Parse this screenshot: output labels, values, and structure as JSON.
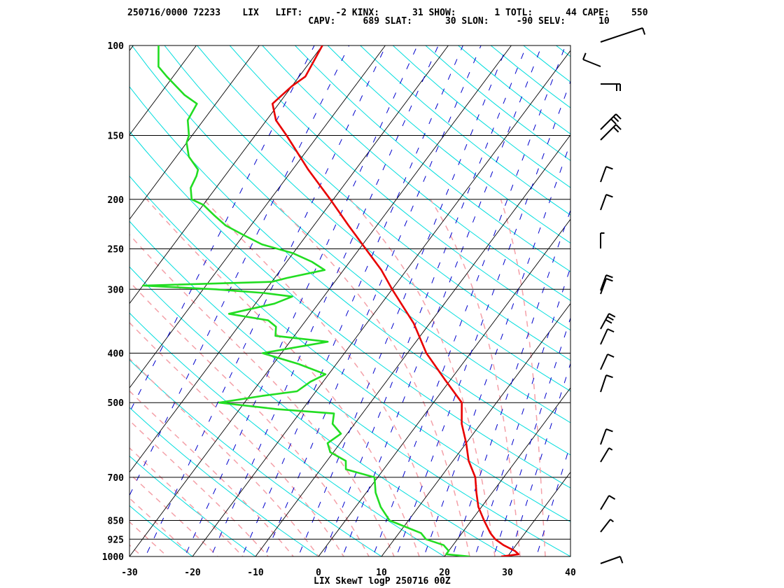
{
  "header": {
    "line1": "250716/0000 72233    LIX   LIFT:      -2 KINX:      31 SHOW:       1 TOTL:      44 CAPE:    550",
    "line2": "                                 CAPV:     689 SLAT:      30 SLON:     -90 SELV:      10"
  },
  "chart_data": {
    "type": "line",
    "title": "LIX SkewT logP 250716 00Z",
    "station": "LIX",
    "station_id": "72233",
    "xlabel": "",
    "ylabel": "",
    "x_ticks": [
      -30,
      -20,
      -10,
      0,
      10,
      20,
      30,
      40
    ],
    "p_ticks": [
      100,
      150,
      200,
      250,
      300,
      400,
      500,
      700,
      850,
      925,
      1000
    ],
    "xlim": [
      -30,
      40
    ],
    "plim": [
      1000,
      100
    ],
    "log_p_axis": true,
    "indices": {
      "LIFT": -2,
      "KINX": 31,
      "SHOW": 1,
      "TOTL": 44,
      "CAPE": 550,
      "CAPV": 689,
      "SLAT": 30,
      "SLON": -90,
      "SELV": 10
    },
    "colors": {
      "temperature": "#e80000",
      "dewpoint": "#22dd22",
      "isotherm": "#000000",
      "dry_adiabat": "#00dddd",
      "moist_adiabat": "#f4a0a8",
      "mixing_ratio": "#0000cc",
      "isobar": "#000000"
    },
    "series": [
      {
        "key": "temperature",
        "points": [
          [
            1000,
            29.0
          ],
          [
            990,
            31.5
          ],
          [
            975,
            30.5
          ],
          [
            950,
            28.0
          ],
          [
            925,
            26.0
          ],
          [
            900,
            24.5
          ],
          [
            850,
            22.0
          ],
          [
            800,
            19.5
          ],
          [
            750,
            17.5
          ],
          [
            700,
            15.5
          ],
          [
            650,
            12.5
          ],
          [
            600,
            10.0
          ],
          [
            550,
            7.0
          ],
          [
            500,
            4.5
          ],
          [
            450,
            -1.0
          ],
          [
            400,
            -7.0
          ],
          [
            350,
            -12.5
          ],
          [
            300,
            -20.0
          ],
          [
            275,
            -24.0
          ],
          [
            250,
            -29.0
          ],
          [
            225,
            -34.5
          ],
          [
            200,
            -40.5
          ],
          [
            175,
            -47.5
          ],
          [
            150,
            -55.0
          ],
          [
            140,
            -58.5
          ],
          [
            130,
            -61.0
          ],
          [
            120,
            -60.0
          ],
          [
            115,
            -59.0
          ],
          [
            100,
            -60.0
          ]
        ]
      },
      {
        "key": "dewpoint",
        "points": [
          [
            1000,
            24.0
          ],
          [
            990,
            20.0
          ],
          [
            975,
            20.0
          ],
          [
            950,
            18.5
          ],
          [
            925,
            15.0
          ],
          [
            900,
            13.5
          ],
          [
            850,
            7.0
          ],
          [
            800,
            4.0
          ],
          [
            750,
            1.5
          ],
          [
            700,
            -0.5
          ],
          [
            675,
            -6.0
          ],
          [
            650,
            -7.0
          ],
          [
            625,
            -10.5
          ],
          [
            600,
            -12.0
          ],
          [
            575,
            -11.0
          ],
          [
            550,
            -13.5
          ],
          [
            525,
            -14.5
          ],
          [
            515,
            -24.0
          ],
          [
            500,
            -34.0
          ],
          [
            485,
            -28.0
          ],
          [
            475,
            -23.0
          ],
          [
            455,
            -22.0
          ],
          [
            440,
            -20.5
          ],
          [
            420,
            -26.0
          ],
          [
            400,
            -33.0
          ],
          [
            380,
            -24.0
          ],
          [
            370,
            -33.0
          ],
          [
            355,
            -34.0
          ],
          [
            345,
            -36.0
          ],
          [
            335,
            -43.0
          ],
          [
            320,
            -37.0
          ],
          [
            310,
            -35.0
          ],
          [
            305,
            -40.0
          ],
          [
            300,
            -48.0
          ],
          [
            295,
            -60.0
          ],
          [
            290,
            -40.0
          ],
          [
            285,
            -38.0
          ],
          [
            275,
            -33.0
          ],
          [
            265,
            -36.0
          ],
          [
            255,
            -40.0
          ],
          [
            245,
            -46.0
          ],
          [
            235,
            -50.0
          ],
          [
            225,
            -54.0
          ],
          [
            215,
            -57.0
          ],
          [
            205,
            -60.0
          ],
          [
            200,
            -62.5
          ],
          [
            190,
            -64.0
          ],
          [
            180,
            -64.5
          ],
          [
            175,
            -65.0
          ],
          [
            165,
            -68.0
          ],
          [
            155,
            -70.0
          ],
          [
            150,
            -70.5
          ],
          [
            140,
            -72.5
          ],
          [
            130,
            -73.0
          ],
          [
            125,
            -76.0
          ],
          [
            115,
            -81.0
          ],
          [
            110,
            -83.5
          ],
          [
            100,
            -86.0
          ]
        ]
      }
    ]
  }
}
